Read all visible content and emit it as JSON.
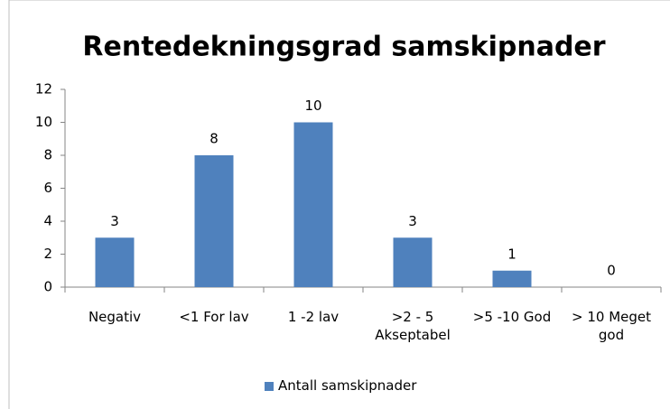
{
  "chart_data": {
    "type": "bar",
    "title": "Rentedekningsgrad samskipnader",
    "categories": [
      "Negativ",
      "<1 For lav",
      "1 -2 lav",
      ">2 - 5 Akseptabel",
      ">5 -10 God",
      "> 10 Meget god"
    ],
    "series": [
      {
        "name": "Antall samskipnader",
        "color": "#4f81bd",
        "values": [
          3,
          8,
          10,
          3,
          1,
          0
        ]
      }
    ],
    "ylim": [
      0,
      12
    ],
    "yticks": [
      0,
      2,
      4,
      6,
      8,
      10,
      12
    ],
    "grid": false,
    "legend": "bottom"
  }
}
